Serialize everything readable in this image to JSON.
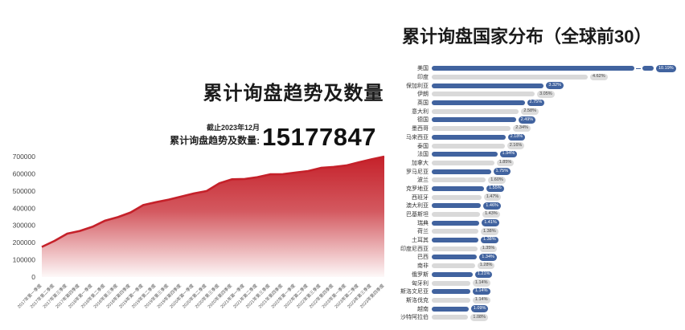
{
  "trend_chart": {
    "title": "累计询盘趋势及数量",
    "as_of": "截止2023年12月",
    "total_label": "累计询盘趋势及数量:",
    "total_value": "15177847"
  },
  "country_chart": {
    "title": "累计询盘国家分布（全球前30）"
  },
  "chart_data": [
    {
      "type": "area",
      "title": "累计询盘趋势及数量",
      "xlabel": "",
      "ylabel": "",
      "ylim": [
        0,
        700000
      ],
      "yticks": [
        700000,
        600000,
        500000,
        400000,
        300000,
        200000,
        100000,
        0
      ],
      "grid": false,
      "legend": "none",
      "line_color": "#c5212a",
      "fill_style": "red-gradient-fade-to-white",
      "categories": [
        "2017年第一季度",
        "2017年第二季度",
        "2017年第三季度",
        "2017年第四季度",
        "2018年第一季度",
        "2018年第二季度",
        "2018年第三季度",
        "2018年第四季度",
        "2019年第一季度",
        "2019年第二季度",
        "2019年第三季度",
        "2019年第四季度",
        "2020年第一季度",
        "2020年第二季度",
        "2020年第三季度",
        "2020年第四季度",
        "2021年第一季度",
        "2021年第二季度",
        "2021年第三季度",
        "2021年第四季度",
        "2022年第一季度",
        "2022年第二季度",
        "2022年第三季度",
        "2022年第四季度",
        "2023年第一季度",
        "2023年第二季度",
        "2023年第三季度",
        "2023年第四季度"
      ],
      "values": [
        175000,
        210000,
        252000,
        268000,
        292000,
        328000,
        348000,
        375000,
        418000,
        435000,
        450000,
        468000,
        486000,
        500000,
        545000,
        568000,
        570000,
        580000,
        597000,
        598000,
        607000,
        616000,
        634000,
        640000,
        648000,
        667000,
        684000,
        700000
      ]
    },
    {
      "type": "bar",
      "orientation": "horizontal",
      "title": "累计询盘国家分布（全球前30）",
      "unit": "%",
      "bar_color_odd_rows": "#41639f",
      "bar_color_even_rows": "#d9d9d9",
      "axis_break_category": "美国",
      "categories": [
        "美国",
        "印度",
        "保加利亚",
        "伊朗",
        "英国",
        "意大利",
        "德国",
        "墨西哥",
        "马来西亚",
        "泰国",
        "法国",
        "加拿大",
        "罗马尼亚",
        "波兰",
        "克罗地亚",
        "西班牙",
        "澳大利亚",
        "巴基斯坦",
        "瑞典",
        "荷兰",
        "土耳其",
        "印度尼西亚",
        "巴西",
        "南非",
        "俄罗斯",
        "匈牙利",
        "斯洛文尼亚",
        "斯洛伐克",
        "越南",
        "沙特阿拉伯"
      ],
      "values": [
        10.19,
        4.62,
        3.32,
        3.05,
        2.75,
        2.58,
        2.49,
        2.34,
        2.18,
        2.16,
        1.94,
        1.85,
        1.75,
        1.6,
        1.55,
        1.47,
        1.46,
        1.43,
        1.41,
        1.38,
        1.38,
        1.35,
        1.34,
        1.28,
        1.21,
        1.14,
        1.14,
        1.14,
        1.09,
        1.08
      ],
      "value_labels": [
        "10.19%",
        "4.62%",
        "3.32%",
        "3.05%",
        "2.75%",
        "2.58%",
        "2.49%",
        "2.34%",
        "2.18%",
        "2.16%",
        "1.94%",
        "1.85%",
        "1.75%",
        "1.60%",
        "1.55%",
        "1.47%",
        "1.46%",
        "1.43%",
        "1.41%",
        "1.38%",
        "1.38%",
        "1.35%",
        "1.34%",
        "1.28%",
        "1.21%",
        "1.14%",
        "1.14%",
        "1.14%",
        "1.09%",
        "1.08%"
      ]
    }
  ]
}
